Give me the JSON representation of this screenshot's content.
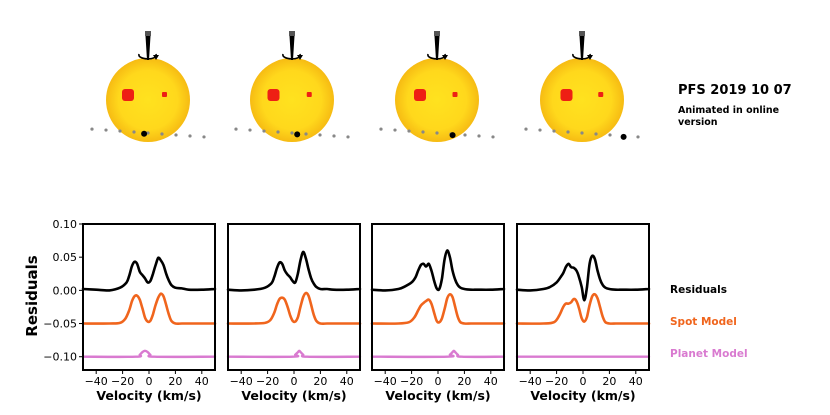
{
  "title": "PFS 2019 10 07",
  "subtitle_lines": [
    "Animated in online",
    "version"
  ],
  "colors": {
    "residuals": "#000000",
    "spot_model": "#f0651d",
    "planet_model": "#d97ad0",
    "star_center": "#ffe21f",
    "star_edge": "#f6bb13",
    "spot": "#ee1f14",
    "orbit_dots": "#888888",
    "planet": "#000000"
  },
  "chart_data": {
    "type": "line",
    "n_panels": 4,
    "ylabel": "Residuals",
    "xlabel": "Velocity (km/s)",
    "xlim": [
      -50,
      50
    ],
    "ylim": [
      -0.12,
      0.1
    ],
    "xticks": [
      -40,
      -20,
      0,
      20,
      40
    ],
    "xtick_labels": [
      "−40",
      "−20",
      "0",
      "20",
      "40"
    ],
    "yticks": [
      0.1,
      0.05,
      0.0,
      -0.05,
      -0.1
    ],
    "ytick_labels": [
      "0.10",
      "0.05",
      "0.00",
      "−0.05",
      "−0.10"
    ],
    "legend": [
      "Residuals",
      "Spot Model",
      "Planet Model"
    ],
    "panels": [
      {
        "name": "epoch-1",
        "planet_velocity": -3,
        "residuals": {
          "x": [
            -50,
            -40,
            -30,
            -22,
            -17,
            -15,
            -13,
            -11,
            -9,
            -7,
            -5,
            -3,
            -1,
            1,
            3,
            5,
            7,
            9,
            11,
            13,
            15,
            17,
            20,
            25,
            30,
            40,
            50
          ],
          "y": [
            0.002,
            0.001,
            0.0,
            0.004,
            0.012,
            0.022,
            0.036,
            0.043,
            0.04,
            0.028,
            0.023,
            0.018,
            0.012,
            0.014,
            0.025,
            0.038,
            0.049,
            0.045,
            0.038,
            0.025,
            0.015,
            0.008,
            0.004,
            0.003,
            0.001,
            0.001,
            0.002
          ]
        },
        "spot_model": {
          "x": [
            -50,
            -30,
            -22,
            -18,
            -15,
            -13,
            -11,
            -9,
            -7,
            -5,
            -3,
            -1,
            1,
            3,
            5,
            7,
            9,
            11,
            13,
            15,
            17,
            20,
            25,
            30,
            50
          ],
          "y": [
            -0.05,
            -0.05,
            -0.049,
            -0.043,
            -0.03,
            -0.017,
            -0.009,
            -0.008,
            -0.014,
            -0.027,
            -0.041,
            -0.047,
            -0.046,
            -0.036,
            -0.022,
            -0.011,
            -0.005,
            -0.009,
            -0.022,
            -0.036,
            -0.046,
            -0.05,
            -0.05,
            -0.05,
            -0.05
          ]
        },
        "planet_model": {
          "x": [
            -50,
            -10,
            -7,
            -5,
            -3,
            -1,
            1,
            4,
            50
          ],
          "y": [
            -0.1,
            -0.1,
            -0.097,
            -0.093,
            -0.091,
            -0.093,
            -0.097,
            -0.1,
            -0.1
          ]
        }
      },
      {
        "name": "epoch-2",
        "planet_velocity": 4,
        "residuals": {
          "x": [
            -50,
            -40,
            -30,
            -22,
            -17,
            -15,
            -13,
            -11,
            -9,
            -7,
            -5,
            -3,
            -1,
            1,
            3,
            5,
            7,
            9,
            11,
            13,
            15,
            17,
            20,
            25,
            30,
            40,
            50
          ],
          "y": [
            0.001,
            0.0,
            0.001,
            0.004,
            0.011,
            0.02,
            0.033,
            0.042,
            0.04,
            0.03,
            0.024,
            0.02,
            0.014,
            0.012,
            0.026,
            0.046,
            0.058,
            0.048,
            0.032,
            0.018,
            0.01,
            0.005,
            0.002,
            0.002,
            0.001,
            0.001,
            0.002
          ]
        },
        "spot_model": {
          "x": [
            -50,
            -30,
            -22,
            -18,
            -15,
            -13,
            -11,
            -9,
            -7,
            -5,
            -3,
            -1,
            1,
            3,
            5,
            7,
            9,
            11,
            13,
            15,
            17,
            20,
            25,
            30,
            50
          ],
          "y": [
            -0.05,
            -0.05,
            -0.049,
            -0.045,
            -0.034,
            -0.022,
            -0.013,
            -0.011,
            -0.014,
            -0.024,
            -0.037,
            -0.046,
            -0.047,
            -0.04,
            -0.024,
            -0.01,
            -0.004,
            -0.008,
            -0.022,
            -0.037,
            -0.046,
            -0.05,
            -0.05,
            -0.05,
            -0.05
          ]
        },
        "planet_model": {
          "x": [
            -50,
            -1,
            1,
            3,
            4,
            5,
            7,
            10,
            50
          ],
          "y": [
            -0.1,
            -0.1,
            -0.097,
            -0.093,
            -0.091,
            -0.093,
            -0.097,
            -0.1,
            -0.1
          ]
        }
      },
      {
        "name": "epoch-3",
        "planet_velocity": 12,
        "residuals": {
          "x": [
            -50,
            -40,
            -30,
            -25,
            -20,
            -17,
            -15,
            -13,
            -11,
            -9,
            -7,
            -5,
            -3,
            -1,
            1,
            3,
            5,
            7,
            9,
            11,
            13,
            15,
            17,
            20,
            25,
            30,
            40,
            50
          ],
          "y": [
            0.001,
            0.0,
            0.002,
            0.006,
            0.012,
            0.02,
            0.03,
            0.038,
            0.04,
            0.036,
            0.04,
            0.03,
            0.015,
            0.003,
            0.002,
            0.018,
            0.047,
            0.06,
            0.05,
            0.03,
            0.016,
            0.008,
            0.004,
            0.002,
            0.001,
            0.001,
            0.001,
            0.002
          ]
        },
        "spot_model": {
          "x": [
            -50,
            -30,
            -22,
            -18,
            -15,
            -13,
            -11,
            -9,
            -7,
            -5,
            -3,
            -1,
            1,
            3,
            5,
            7,
            9,
            11,
            13,
            15,
            17,
            20,
            25,
            30,
            50
          ],
          "y": [
            -0.05,
            -0.05,
            -0.048,
            -0.041,
            -0.03,
            -0.023,
            -0.019,
            -0.016,
            -0.014,
            -0.02,
            -0.033,
            -0.046,
            -0.048,
            -0.042,
            -0.028,
            -0.012,
            -0.006,
            -0.01,
            -0.025,
            -0.04,
            -0.048,
            -0.05,
            -0.05,
            -0.05,
            -0.05
          ]
        },
        "planet_model": {
          "x": [
            -50,
            7,
            9,
            11,
            12,
            13,
            15,
            18,
            50
          ],
          "y": [
            -0.1,
            -0.1,
            -0.097,
            -0.093,
            -0.091,
            -0.093,
            -0.097,
            -0.1,
            -0.1
          ]
        }
      },
      {
        "name": "epoch-4",
        "planet_velocity": 32,
        "residuals": {
          "x": [
            -50,
            -40,
            -30,
            -25,
            -20,
            -17,
            -15,
            -13,
            -11,
            -9,
            -7,
            -5,
            -3,
            -1,
            1,
            3,
            5,
            7,
            9,
            11,
            13,
            15,
            17,
            20,
            25,
            30,
            40,
            50
          ],
          "y": [
            0.001,
            0.0,
            0.002,
            0.005,
            0.012,
            0.02,
            0.026,
            0.035,
            0.04,
            0.035,
            0.034,
            0.03,
            0.02,
            0.005,
            -0.015,
            0.005,
            0.04,
            0.052,
            0.047,
            0.03,
            0.016,
            0.008,
            0.004,
            0.002,
            0.001,
            0.001,
            0.001,
            0.002
          ]
        },
        "spot_model": {
          "x": [
            -50,
            -30,
            -22,
            -18,
            -15,
            -13,
            -11,
            -9,
            -7,
            -5,
            -3,
            -1,
            1,
            3,
            5,
            7,
            9,
            11,
            13,
            15,
            17,
            20,
            25,
            30,
            50
          ],
          "y": [
            -0.05,
            -0.05,
            -0.048,
            -0.038,
            -0.025,
            -0.02,
            -0.02,
            -0.018,
            -0.013,
            -0.016,
            -0.027,
            -0.042,
            -0.047,
            -0.04,
            -0.022,
            -0.009,
            -0.006,
            -0.012,
            -0.026,
            -0.04,
            -0.048,
            -0.05,
            -0.05,
            -0.05,
            -0.05
          ]
        },
        "planet_model": {
          "x": [
            -50,
            50
          ],
          "y": [
            -0.1,
            -0.1
          ]
        }
      }
    ]
  }
}
